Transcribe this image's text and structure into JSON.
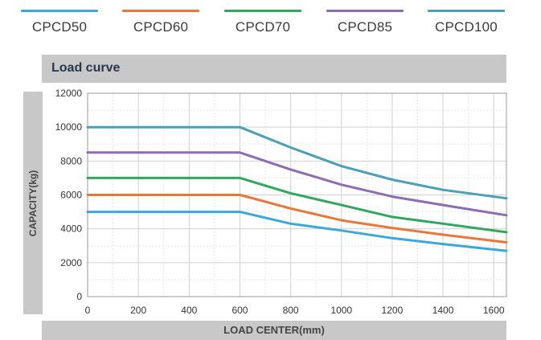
{
  "legend": [
    {
      "name": "CPCD50",
      "color": "#3aa8dc"
    },
    {
      "name": "CPCD60",
      "color": "#e8783a"
    },
    {
      "name": "CPCD70",
      "color": "#2ea85c"
    },
    {
      "name": "CPCD85",
      "color": "#8c6cb4"
    },
    {
      "name": "CPCD100",
      "color": "#4aa0b8"
    }
  ],
  "chart_data": {
    "type": "line",
    "title": "Load curve",
    "xlabel": "LOAD CENTER(mm)",
    "ylabel": "CAPACITY(kg)",
    "xlim": [
      0,
      1650
    ],
    "ylim": [
      0,
      12000
    ],
    "xticks": [
      "0",
      "200",
      "400",
      "600",
      "800",
      "1000",
      "1200",
      "1400",
      "1600"
    ],
    "xtick_values": [
      0,
      200,
      400,
      600,
      800,
      1000,
      1200,
      1400,
      1600
    ],
    "yticks": [
      "0",
      "2000",
      "4000",
      "6000",
      "8000",
      "10000",
      "12000"
    ],
    "ytick_values": [
      0,
      2000,
      4000,
      6000,
      8000,
      10000,
      12000
    ],
    "grid": true,
    "legend_position": "top",
    "series": [
      {
        "name": "CPCD50",
        "color": "#3aa8dc",
        "x": [
          0,
          600,
          800,
          1000,
          1200,
          1400,
          1650
        ],
        "y": [
          5000,
          5000,
          4300,
          3900,
          3450,
          3100,
          2700
        ]
      },
      {
        "name": "CPCD60",
        "color": "#e8783a",
        "x": [
          0,
          600,
          800,
          1000,
          1200,
          1400,
          1650
        ],
        "y": [
          6000,
          6000,
          5200,
          4500,
          4050,
          3650,
          3200
        ]
      },
      {
        "name": "CPCD70",
        "color": "#2ea85c",
        "x": [
          0,
          600,
          800,
          1000,
          1200,
          1400,
          1650
        ],
        "y": [
          7000,
          7000,
          6100,
          5400,
          4700,
          4300,
          3800
        ]
      },
      {
        "name": "CPCD85",
        "color": "#8c6cb4",
        "x": [
          0,
          600,
          800,
          1000,
          1200,
          1400,
          1650
        ],
        "y": [
          8500,
          8500,
          7500,
          6600,
          5900,
          5400,
          4800
        ]
      },
      {
        "name": "CPCD100",
        "color": "#4aa0b8",
        "x": [
          0,
          600,
          800,
          1000,
          1200,
          1400,
          1650
        ],
        "y": [
          10000,
          10000,
          8800,
          7700,
          6900,
          6300,
          5800
        ]
      }
    ]
  }
}
